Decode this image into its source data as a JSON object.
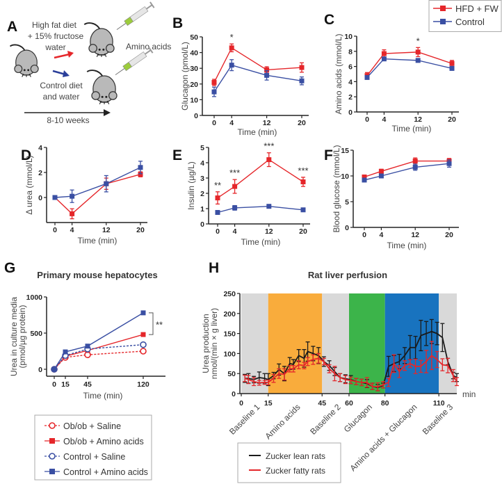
{
  "colors": {
    "hfd": "#e5262a",
    "control": "#3a4fa3",
    "lean": "#1a1a1a",
    "fatty": "#e5262a",
    "baseline_band": "#d9d9d9",
    "amino_band": "#f9ac3c",
    "glucagon_band": "#3cb44a",
    "aa_glucagon_band": "#1873bf"
  },
  "panelA": {
    "letter": "A",
    "hfd_line1": "High fat diet",
    "hfd_line2": "+ 15% fructose",
    "hfd_line3": "water",
    "control_line1": "Control diet",
    "control_line2": "and water",
    "injection": "Amino acids",
    "duration": "8-10 weeks",
    "icons": [
      "mouse-icon",
      "syringe-icon",
      "arrow-icon"
    ]
  },
  "top_legend": {
    "items": [
      {
        "label": "HFD + FW",
        "color": "#e5262a"
      },
      {
        "label": "Control",
        "color": "#3a4fa3"
      }
    ]
  },
  "chart_data": [
    {
      "id": "B",
      "letter": "B",
      "type": "line",
      "xlabel": "Time (min)",
      "ylabel": "Glucagon (pmol/L)",
      "x": [
        0,
        4,
        12,
        20
      ],
      "xticks": [
        "0",
        "4",
        "12",
        "20"
      ],
      "ylim": [
        0,
        50
      ],
      "yticks": [
        "0",
        "10",
        "20",
        "30",
        "40",
        "50"
      ],
      "series": [
        {
          "name": "HFD + FW",
          "values": [
            21,
            43,
            29,
            30.5
          ],
          "err": [
            2,
            2.5,
            2,
            3
          ]
        },
        {
          "name": "Control",
          "values": [
            15,
            32,
            25.5,
            22
          ],
          "err": [
            3,
            3.5,
            3,
            2.5
          ]
        }
      ],
      "annotations": [
        {
          "x": 4,
          "text": "*"
        }
      ]
    },
    {
      "id": "C",
      "letter": "C",
      "type": "line",
      "xlabel": "Time (min)",
      "ylabel": "Amino acids (mmol/L)",
      "x": [
        0,
        4,
        12,
        20
      ],
      "xticks": [
        "0",
        "4",
        "12",
        "20"
      ],
      "ylim": [
        0,
        10
      ],
      "yticks": [
        "0",
        "2",
        "4",
        "6",
        "8",
        "10"
      ],
      "series": [
        {
          "name": "HFD + FW",
          "values": [
            4.8,
            7.7,
            7.9,
            6.4
          ],
          "err": [
            0.4,
            0.5,
            0.6,
            0.4
          ]
        },
        {
          "name": "Control",
          "values": [
            4.55,
            7.0,
            6.8,
            5.75
          ],
          "err": [
            0.15,
            0.15,
            0.2,
            0.25
          ]
        }
      ],
      "annotations": [
        {
          "x": 12,
          "text": "*"
        }
      ]
    },
    {
      "id": "D",
      "letter": "D",
      "type": "line",
      "xlabel": "Time (min)",
      "ylabel": "Δ urea (mmol/L)",
      "x": [
        0,
        4,
        12,
        20
      ],
      "xticks": [
        "0",
        "4",
        "12",
        "20"
      ],
      "ylim": [
        -2,
        4
      ],
      "yticks": [
        "0",
        "2",
        "4"
      ],
      "series": [
        {
          "name": "HFD + FW",
          "values": [
            0,
            -1.3,
            1.1,
            1.85
          ],
          "err": [
            0.05,
            0.4,
            0.45,
            0.2
          ]
        },
        {
          "name": "Control",
          "values": [
            0,
            0.1,
            1.1,
            2.4
          ],
          "err": [
            0.05,
            0.5,
            0.65,
            0.5
          ]
        }
      ],
      "annotations": []
    },
    {
      "id": "E",
      "letter": "E",
      "type": "line",
      "xlabel": "Time (min)",
      "ylabel": "Insulin (µg/L)",
      "x": [
        0,
        4,
        12,
        20
      ],
      "xticks": [
        "0",
        "4",
        "12",
        "20"
      ],
      "ylim": [
        0,
        5
      ],
      "yticks": [
        "0",
        "1",
        "2",
        "3",
        "4",
        "5"
      ],
      "series": [
        {
          "name": "HFD + FW",
          "values": [
            1.7,
            2.45,
            4.2,
            2.75
          ],
          "err": [
            0.4,
            0.45,
            0.45,
            0.3
          ]
        },
        {
          "name": "Control",
          "values": [
            0.75,
            1.05,
            1.15,
            0.92
          ],
          "err": [
            0.1,
            0.15,
            0.1,
            0.05
          ]
        }
      ],
      "annotations": [
        {
          "x": 0,
          "text": "**"
        },
        {
          "x": 4,
          "text": "***"
        },
        {
          "x": 12,
          "text": "***"
        },
        {
          "x": 20,
          "text": "***"
        }
      ]
    },
    {
      "id": "F",
      "letter": "F",
      "type": "line",
      "xlabel": "Time (min)",
      "ylabel": "Blood glucose (mmol/L)",
      "x": [
        0,
        4,
        12,
        20
      ],
      "xticks": [
        "0",
        "4",
        "12",
        "20"
      ],
      "ylim": [
        0,
        15
      ],
      "yticks": [
        "0",
        "5",
        "10",
        "15"
      ],
      "series": [
        {
          "name": "HFD + FW",
          "values": [
            9.8,
            10.9,
            12.9,
            12.9
          ],
          "err": [
            0.3,
            0.4,
            0.6,
            0.5
          ]
        },
        {
          "name": "Control",
          "values": [
            9.2,
            10.0,
            11.7,
            12.4
          ],
          "err": [
            0.2,
            0.3,
            0.6,
            0.7
          ]
        }
      ],
      "annotations": []
    },
    {
      "id": "G",
      "letter": "G",
      "type": "line",
      "title": "Primary mouse hepatocytes",
      "xlabel": "Time (min)",
      "ylabel_line1": "Urea in culture media",
      "ylabel_line2": "(pmol/µg protein)",
      "x": [
        0,
        15,
        45,
        120
      ],
      "xticks": [
        "0",
        "15",
        "45",
        "120"
      ],
      "ylim": [
        0,
        1000
      ],
      "yticks": [
        "0",
        "500",
        "1000"
      ],
      "series": [
        {
          "name": "Ob/ob + Saline",
          "values": [
            0,
            165,
            200,
            250
          ],
          "color": "#e5262a",
          "marker": "open-circle",
          "dashed": true
        },
        {
          "name": "Ob/ob + Amino acids",
          "values": [
            0,
            180,
            260,
            480
          ],
          "color": "#e5262a",
          "marker": "square",
          "dashed": false
        },
        {
          "name": "Control + Saline",
          "values": [
            0,
            190,
            280,
            340
          ],
          "color": "#3a4fa3",
          "marker": "open-circle",
          "dashed": true
        },
        {
          "name": "Control + Amino acids",
          "values": [
            0,
            240,
            320,
            780
          ],
          "color": "#3a4fa3",
          "marker": "square",
          "dashed": false
        }
      ],
      "annotations": [
        {
          "x": 120,
          "from": 780,
          "to": 480,
          "text": "**"
        }
      ]
    },
    {
      "id": "H",
      "letter": "H",
      "type": "line",
      "title": "Rat liver perfusion",
      "ylabel_line1": "Urea production",
      "ylabel_line2": "nmol/(min × g liver)",
      "xunit": "min",
      "xlim": [
        0,
        120
      ],
      "ylim": [
        0,
        250
      ],
      "yticks": [
        "0",
        "50",
        "100",
        "150",
        "200",
        "250"
      ],
      "xticks": [
        "0",
        "15",
        "45",
        "60",
        "80",
        "110"
      ],
      "periods": [
        {
          "label": "Baseline 1",
          "start": 0,
          "end": 15,
          "band": "baseline_band"
        },
        {
          "label": "Amino acids",
          "start": 15,
          "end": 45,
          "band": "amino_band"
        },
        {
          "label": "Baseline 2",
          "start": 45,
          "end": 60,
          "band": "baseline_band"
        },
        {
          "label": "Glucagon",
          "start": 60,
          "end": 80,
          "band": "glucagon_band"
        },
        {
          "label": "Amino acids + Glucagon",
          "start": 80,
          "end": 110,
          "band": "aa_glucagon_band"
        },
        {
          "label": "Baseline 3",
          "start": 110,
          "end": 120,
          "band": "baseline_band"
        }
      ],
      "x": [
        2,
        4,
        7,
        10,
        13,
        15,
        18,
        21,
        24,
        27,
        29,
        32,
        35,
        37,
        40,
        43,
        46,
        49,
        52,
        55,
        58,
        61,
        64,
        67,
        70,
        73,
        76,
        79,
        82,
        85,
        88,
        91,
        94,
        97,
        100,
        103,
        106,
        109,
        112,
        115,
        118,
        120
      ],
      "series": [
        {
          "name": "Zucker lean rats",
          "values": [
            38,
            38,
            35,
            40,
            38,
            35,
            45,
            60,
            50,
            75,
            73,
            95,
            88,
            105,
            100,
            95,
            80,
            70,
            55,
            40,
            37,
            35,
            30,
            28,
            25,
            18,
            15,
            20,
            68,
            75,
            80,
            95,
            115,
            115,
            145,
            150,
            155,
            150,
            140,
            80,
            45,
            40
          ],
          "err": [
            10,
            12,
            8,
            14,
            12,
            15,
            8,
            14,
            18,
            15,
            12,
            15,
            22,
            24,
            18,
            20,
            12,
            12,
            10,
            10,
            10,
            10,
            8,
            8,
            10,
            8,
            8,
            6,
            25,
            20,
            18,
            20,
            30,
            28,
            38,
            30,
            30,
            28,
            35,
            8,
            8,
            10
          ]
        },
        {
          "name": "Zucker fatty rats",
          "values": [
            38,
            35,
            30,
            27,
            28,
            28,
            38,
            50,
            48,
            62,
            62,
            72,
            70,
            80,
            85,
            88,
            80,
            62,
            50,
            40,
            35,
            33,
            30,
            28,
            28,
            18,
            17,
            22,
            28,
            75,
            55,
            70,
            75,
            68,
            68,
            80,
            95,
            85,
            72,
            70,
            45,
            30
          ],
          "err": [
            8,
            10,
            10,
            6,
            5,
            6,
            10,
            12,
            14,
            8,
            8,
            10,
            8,
            10,
            12,
            12,
            8,
            10,
            18,
            10,
            10,
            8,
            8,
            8,
            12,
            8,
            10,
            8,
            10,
            22,
            15,
            12,
            10,
            18,
            15,
            28,
            35,
            20,
            15,
            18,
            15,
            10
          ]
        }
      ]
    }
  ]
}
